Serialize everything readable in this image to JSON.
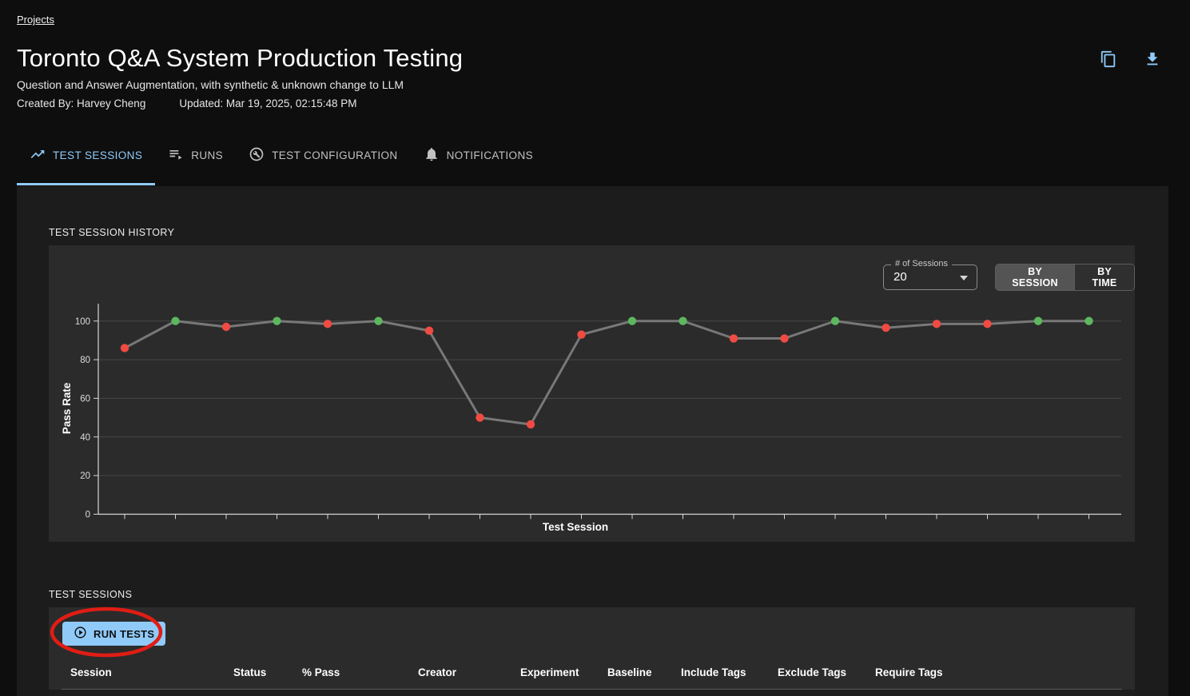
{
  "breadcrumb": {
    "label": "Projects"
  },
  "header": {
    "title": "Toronto Q&A System Production Testing",
    "subtitle": "Question and Answer Augmentation, with synthetic & unknown change to LLM",
    "created_by": "Created By: Harvey Cheng",
    "updated": "Updated: Mar 19, 2025, 02:15:48 PM"
  },
  "tabs": [
    {
      "label": "TEST SESSIONS",
      "icon": "trending-up-icon",
      "active": true
    },
    {
      "label": "RUNS",
      "icon": "playlist-play-icon",
      "active": false
    },
    {
      "label": "TEST CONFIGURATION",
      "icon": "build-circle-icon",
      "active": false
    },
    {
      "label": "NOTIFICATIONS",
      "icon": "bell-icon",
      "active": false
    }
  ],
  "history_section": {
    "label": "TEST SESSION HISTORY",
    "sessions_select": {
      "label": "# of Sessions",
      "value": "20"
    },
    "toggle": {
      "options": [
        "BY SESSION",
        "BY TIME"
      ],
      "selected": "BY SESSION"
    }
  },
  "chart_data": {
    "type": "line",
    "title": "",
    "xlabel": "Test Session",
    "ylabel": "Pass Rate",
    "ylim": [
      0,
      109
    ],
    "yticks": [
      0,
      20,
      40,
      60,
      80,
      100
    ],
    "x": [
      1,
      2,
      3,
      4,
      5,
      6,
      7,
      8,
      9,
      10,
      11,
      12,
      13,
      14,
      15,
      16,
      17,
      18,
      19,
      20
    ],
    "values": [
      86,
      100,
      97,
      100,
      98.5,
      100,
      95,
      50,
      46.5,
      93,
      100,
      100,
      91,
      91,
      100,
      96.5,
      98.5,
      98.5,
      100,
      100
    ],
    "point_status": [
      "fail",
      "pass",
      "fail",
      "pass",
      "fail",
      "pass",
      "fail",
      "fail",
      "fail",
      "fail",
      "pass",
      "pass",
      "fail",
      "fail",
      "pass",
      "fail",
      "fail",
      "fail",
      "pass",
      "pass"
    ],
    "colors": {
      "pass": "#5db75f",
      "fail": "#ef4b42",
      "line": "#787878",
      "grid": "#474747",
      "axis": "#d6d6d6",
      "tick_label": "#dcdcdc"
    },
    "legend": null,
    "grid": true
  },
  "sessions_section": {
    "label": "TEST SESSIONS",
    "run_tests_button": "RUN TESTS",
    "table_headers": [
      "Session",
      "Status",
      "% Pass",
      "Creator",
      "Experiment",
      "Baseline",
      "Include Tags",
      "Exclude Tags",
      "Require Tags"
    ]
  },
  "annotation": {
    "shape": "ellipse",
    "color": "#e01d15"
  }
}
